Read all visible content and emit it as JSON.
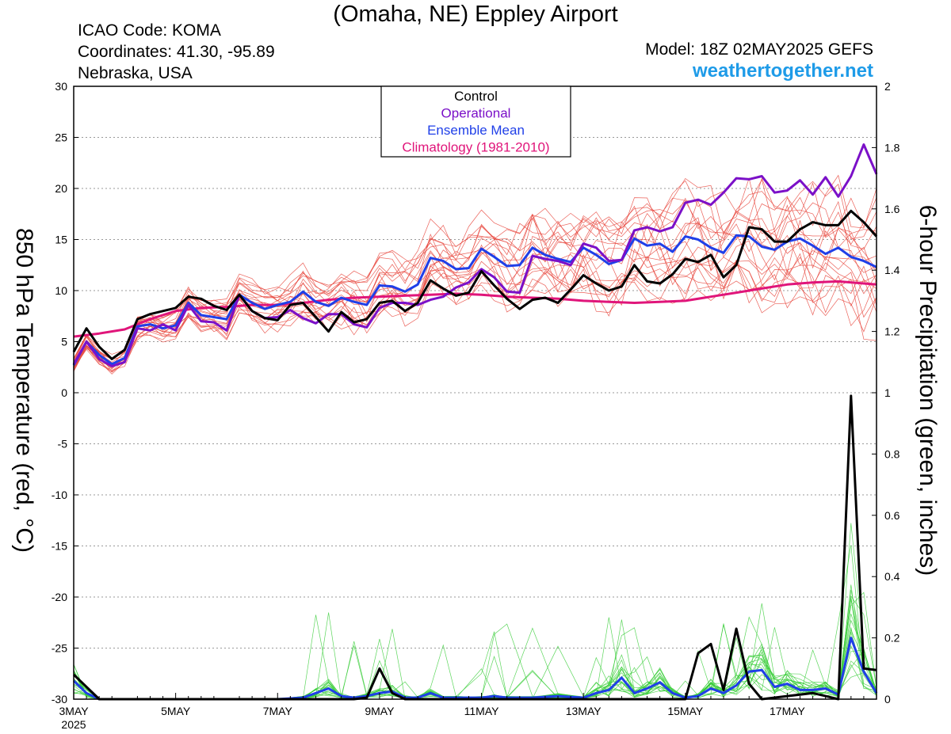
{
  "header": {
    "title": "(Omaha, NE) Eppley Airport",
    "icao": "ICAO Code: KOMA",
    "coords": "Coordinates: 41.30, -95.89",
    "region": "Nebraska, USA",
    "model": "Model: 18Z 02MAY2025 GEFS",
    "site": "weathertogether.net"
  },
  "colors": {
    "members_temp": "#e8453c",
    "members_precip": "#33cc33",
    "control": "#000000",
    "operational": "#7b10c8",
    "ensemble_mean": "#1f3fe8",
    "climatology": "#e0157a",
    "site": "#1e9be8"
  },
  "chart_data": {
    "type": "line",
    "title": "(Omaha, NE) Eppley Airport",
    "ylabel_left": "850 hPa Temperature (red, °C)",
    "ylabel_right": "6-hour Precipitation (green, inches)",
    "ylim_left": [
      -30,
      30
    ],
    "ylim_right": [
      0,
      2
    ],
    "yticks_left": [
      "30",
      "25",
      "20",
      "15",
      "10",
      "5",
      "0",
      "-5",
      "-10",
      "-15",
      "-20",
      "-25",
      "-30"
    ],
    "yticks_right": [
      "2",
      "1.8",
      "1.6",
      "1.4",
      "1.2",
      "1",
      "0.8",
      "0.6",
      "0.4",
      "0.2",
      "0"
    ],
    "x_range_days": [
      3,
      18.75
    ],
    "xticks": [
      {
        "day": 3,
        "label": "3MAY",
        "sub": "2025"
      },
      {
        "day": 5,
        "label": "5MAY"
      },
      {
        "day": 7,
        "label": "7MAY"
      },
      {
        "day": 9,
        "label": "9MAY"
      },
      {
        "day": 11,
        "label": "11MAY"
      },
      {
        "day": 13,
        "label": "13MAY"
      },
      {
        "day": 15,
        "label": "15MAY"
      },
      {
        "day": 17,
        "label": "17MAY"
      }
    ],
    "grid": "dotted horizontal",
    "legend": {
      "position": "top-center",
      "items": [
        {
          "label": "Control",
          "color": "#000000"
        },
        {
          "label": "Operational",
          "color": "#7b10c8"
        },
        {
          "label": "Ensemble Mean",
          "color": "#1f3fe8"
        },
        {
          "label": "Climatology (1981-2010)",
          "color": "#e0157a"
        }
      ]
    },
    "series": [
      {
        "name": "Control",
        "axis": "left",
        "x": [
          3,
          3.25,
          3.5,
          3.75,
          4,
          4.25,
          4.5,
          4.75,
          5,
          5.25,
          5.5,
          5.75,
          6,
          6.25,
          6.5,
          6.75,
          7,
          7.25,
          7.5,
          7.75,
          8,
          8.25,
          8.5,
          8.75,
          9,
          9.25,
          9.5,
          9.75,
          10,
          10.25,
          10.5,
          10.75,
          11,
          11.25,
          11.5,
          11.75,
          12,
          12.25,
          12.5,
          12.75,
          13,
          13.25,
          13.5,
          13.75,
          14,
          14.25,
          14.5,
          14.75,
          15,
          15.25,
          15.5,
          15.75,
          16,
          16.25,
          16.5,
          16.75,
          17,
          17.25,
          17.5,
          17.75,
          18,
          18.25,
          18.5,
          18.75
        ],
        "y": [
          4,
          6.3,
          4.5,
          3.3,
          4.2,
          7.2,
          7.7,
          8.0,
          8.3,
          9.4,
          9.2,
          8.5,
          8.1,
          9.6,
          8.0,
          7.3,
          7.1,
          8.6,
          8.8,
          7.4,
          6.0,
          7.9,
          6.9,
          7.2,
          8.8,
          9.0,
          8.0,
          8.8,
          11.0,
          10.2,
          9.5,
          9.8,
          11.9,
          10.5,
          9.2,
          8.2,
          9.1,
          9.3,
          8.8,
          10.1,
          11.5,
          10.7,
          10.0,
          10.4,
          12.5,
          10.9,
          10.7,
          11.6,
          13.1,
          12.8,
          13.5,
          11.3,
          12.5,
          16.2,
          16.0,
          14.8,
          14.8,
          16.0,
          16.7,
          16.4,
          16.4,
          17.8,
          16.7,
          15.3
        ]
      },
      {
        "name": "Operational",
        "axis": "left",
        "x": [
          3,
          3.25,
          3.5,
          3.75,
          4,
          4.25,
          4.5,
          4.75,
          5,
          5.25,
          5.5,
          5.75,
          6,
          6.25,
          6.5,
          6.75,
          7,
          7.25,
          7.5,
          7.75,
          8,
          8.25,
          8.5,
          8.75,
          9,
          9.25,
          9.5,
          9.75,
          10,
          10.25,
          10.5,
          10.75,
          11,
          11.25,
          11.5,
          11.75,
          12,
          12.25,
          12.5,
          12.75,
          13,
          13.25,
          13.5,
          13.75,
          14,
          14.25,
          14.5,
          14.75,
          15,
          15.25,
          15.5,
          15.75,
          16,
          16.25,
          16.5,
          16.75,
          17,
          17.25,
          17.5,
          17.75,
          18,
          18.25,
          18.5,
          18.75
        ],
        "y": [
          2.8,
          5.0,
          3.3,
          2.6,
          3.0,
          6.3,
          6.1,
          6.7,
          6.1,
          8.6,
          7.0,
          6.9,
          6.1,
          9.6,
          8.0,
          7.3,
          7.4,
          8.1,
          7.3,
          6.8,
          7.7,
          7.7,
          6.7,
          6.4,
          8.3,
          8.8,
          8.8,
          8.6,
          9.1,
          9.4,
          10.3,
          10.8,
          12.1,
          11.3,
          9.9,
          9.8,
          13.4,
          13.1,
          12.9,
          12.5,
          14.6,
          14.2,
          12.9,
          13.0,
          15.9,
          16.2,
          15.8,
          16.2,
          18.6,
          18.9,
          18.4,
          19.6,
          21.0,
          20.9,
          21.2,
          19.6,
          19.8,
          20.8,
          19.4,
          21.1,
          19.2,
          21.2,
          24.3,
          21.4
        ]
      },
      {
        "name": "Ensemble Mean",
        "axis": "left",
        "x": [
          3,
          3.25,
          3.5,
          3.75,
          4,
          4.25,
          4.5,
          4.75,
          5,
          5.25,
          5.5,
          5.75,
          6,
          6.25,
          6.5,
          6.75,
          7,
          7.25,
          7.5,
          7.75,
          8,
          8.25,
          8.5,
          8.75,
          9,
          9.25,
          9.5,
          9.75,
          10,
          10.25,
          10.5,
          10.75,
          11,
          11.25,
          11.5,
          11.75,
          12,
          12.25,
          12.5,
          12.75,
          13,
          13.25,
          13.5,
          13.75,
          14,
          14.25,
          14.5,
          14.75,
          15,
          15.25,
          15.5,
          15.75,
          16,
          16.25,
          16.5,
          16.75,
          17,
          17.25,
          17.5,
          17.75,
          18,
          18.25,
          18.5,
          18.75
        ],
        "y": [
          2.7,
          5.0,
          3.7,
          2.8,
          3.4,
          6.5,
          6.7,
          6.3,
          6.6,
          8.8,
          7.6,
          7.4,
          7.2,
          9.6,
          8.8,
          8.2,
          8.6,
          8.9,
          9.9,
          8.9,
          8.5,
          9.3,
          8.9,
          8.6,
          10.5,
          10.4,
          9.9,
          10.6,
          13.2,
          12.9,
          12.1,
          12.2,
          14.1,
          13.3,
          12.4,
          12.5,
          14.2,
          13.5,
          13.1,
          12.8,
          14.2,
          13.5,
          12.6,
          13.0,
          15.1,
          14.4,
          14.6,
          13.8,
          15.3,
          15.0,
          14.2,
          13.7,
          15.4,
          15.3,
          14.3,
          14.0,
          14.8,
          15.1,
          14.4,
          13.6,
          14.2,
          13.3,
          12.9,
          12.3
        ]
      },
      {
        "name": "Climatology (1981-2010)",
        "axis": "left",
        "x": [
          3,
          3.5,
          4,
          4.5,
          5,
          5.5,
          6,
          6.5,
          7,
          7.5,
          8,
          8.5,
          9,
          9.5,
          10,
          10.5,
          11,
          11.5,
          12,
          12.5,
          13,
          13.5,
          14,
          14.5,
          15,
          15.5,
          16,
          16.5,
          17,
          17.5,
          18,
          18.5,
          18.75
        ],
        "y": [
          5.5,
          5.8,
          6.2,
          7.2,
          8.0,
          8.3,
          8.4,
          8.6,
          8.6,
          8.8,
          9.1,
          9.3,
          9.4,
          9.5,
          9.6,
          9.7,
          9.6,
          9.4,
          9.3,
          9.2,
          9.0,
          8.9,
          8.8,
          8.9,
          9.0,
          9.4,
          9.8,
          10.2,
          10.6,
          10.8,
          10.9,
          10.7,
          10.6
        ]
      },
      {
        "name": "Control Precip",
        "axis": "right",
        "x": [
          3,
          3.25,
          3.5,
          4,
          5,
          6,
          7,
          7.75,
          8,
          8.25,
          8.5,
          8.75,
          9,
          9.25,
          9.5,
          10,
          11,
          12,
          13,
          14,
          14.5,
          15,
          15.25,
          15.5,
          15.75,
          16,
          16.25,
          16.5,
          17,
          17.5,
          17.75,
          18,
          18.25,
          18.5,
          18.75
        ],
        "y": [
          0.08,
          0.04,
          0,
          0,
          0,
          0,
          0,
          0,
          0,
          0,
          0,
          0.005,
          0.1,
          0.02,
          0,
          0,
          0,
          0,
          0,
          0,
          0,
          0,
          0.15,
          0.18,
          0.03,
          0.23,
          0.05,
          0,
          0.01,
          0.02,
          0.01,
          0,
          0.99,
          0.1,
          0.095
        ]
      },
      {
        "name": "Mean Precip",
        "axis": "right",
        "x": [
          3,
          3.25,
          3.5,
          4,
          5,
          6,
          7,
          7.5,
          7.75,
          8,
          8.25,
          8.5,
          8.75,
          9,
          9.25,
          9.5,
          9.75,
          10,
          10.25,
          10.5,
          11,
          11.25,
          11.5,
          12,
          12.5,
          13,
          13.25,
          13.5,
          13.75,
          14,
          14.25,
          14.5,
          14.75,
          15,
          15.25,
          15.5,
          15.75,
          16,
          16.25,
          16.5,
          16.75,
          17,
          17.25,
          17.5,
          17.75,
          18,
          18.25,
          18.5,
          18.75
        ],
        "y": [
          0.06,
          0.02,
          0,
          0,
          0,
          0,
          0,
          0.005,
          0.02,
          0.035,
          0.01,
          0.005,
          0.01,
          0.02,
          0.025,
          0.005,
          0.005,
          0.02,
          0.005,
          0.005,
          0.005,
          0.01,
          0.005,
          0.005,
          0.01,
          0.005,
          0.02,
          0.03,
          0.07,
          0.02,
          0.035,
          0.055,
          0.02,
          0.005,
          0.01,
          0.035,
          0.02,
          0.045,
          0.09,
          0.095,
          0.04,
          0.05,
          0.03,
          0.03,
          0.035,
          0.015,
          0.2,
          0.09,
          0.02
        ]
      }
    ],
    "member_count_shown": 20,
    "notes": "20 ensemble member traces drawn thin red (temperature) and thin green (precipitation)"
  }
}
